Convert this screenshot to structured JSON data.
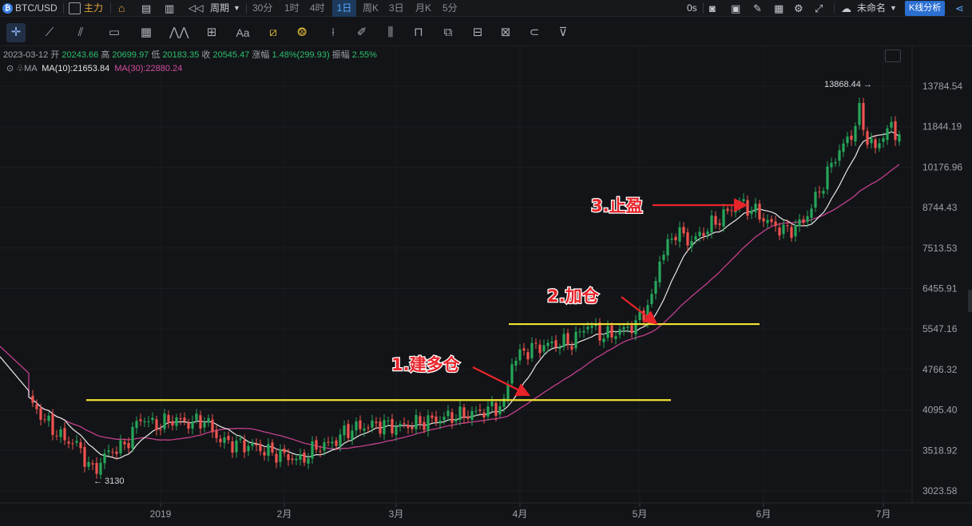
{
  "toolbar": {
    "symbol": "BTC/USD",
    "indicator_label": "主力",
    "period_label": "周期",
    "timeframes": [
      "30分",
      "1时",
      "4时",
      "1日",
      "周K",
      "3日",
      "月K",
      "5分"
    ],
    "active_timeframe": "1日",
    "countdown": "0s",
    "layout_name": "未命名",
    "kline_button": "K线分析"
  },
  "info": {
    "date": "2023-03-12",
    "open_label": "开",
    "open": "20243.66",
    "high_label": "高",
    "high": "20699.97",
    "low_label": "低",
    "low": "20183.35",
    "close_label": "收",
    "close": "20545.47",
    "change_label": "涨幅",
    "change": "1.48%(299.93)",
    "amp_label": "振幅",
    "amp": "2.55%",
    "ma_label": "MA",
    "ma10": "MA(10):21653.84",
    "ma30": "MA(30):22880.24"
  },
  "chart_data": {
    "type": "candlestick",
    "price_ticks": [
      "13784.54",
      "11844.19",
      "10176.96",
      "8744.43",
      "7513.53",
      "6455.91",
      "5547.16",
      "4766.32",
      "4095.40",
      "3518.92",
      "3023.58"
    ],
    "x_ticks": [
      "2019",
      "2月",
      "3月",
      "4月",
      "5月",
      "6月",
      "7月"
    ],
    "high_marker": "13868.44",
    "low_marker": "3130",
    "resistance_levels": [
      4250,
      5650
    ],
    "annotations": [
      "1.建多仓",
      "2.加仓",
      "3.止盈"
    ],
    "colors": {
      "up": "#26a65b",
      "down": "#ef5350",
      "ma10": "#e8e8e8",
      "ma30": "#c2408d",
      "level": "#f2e232",
      "annotation": "#e8242a"
    }
  }
}
